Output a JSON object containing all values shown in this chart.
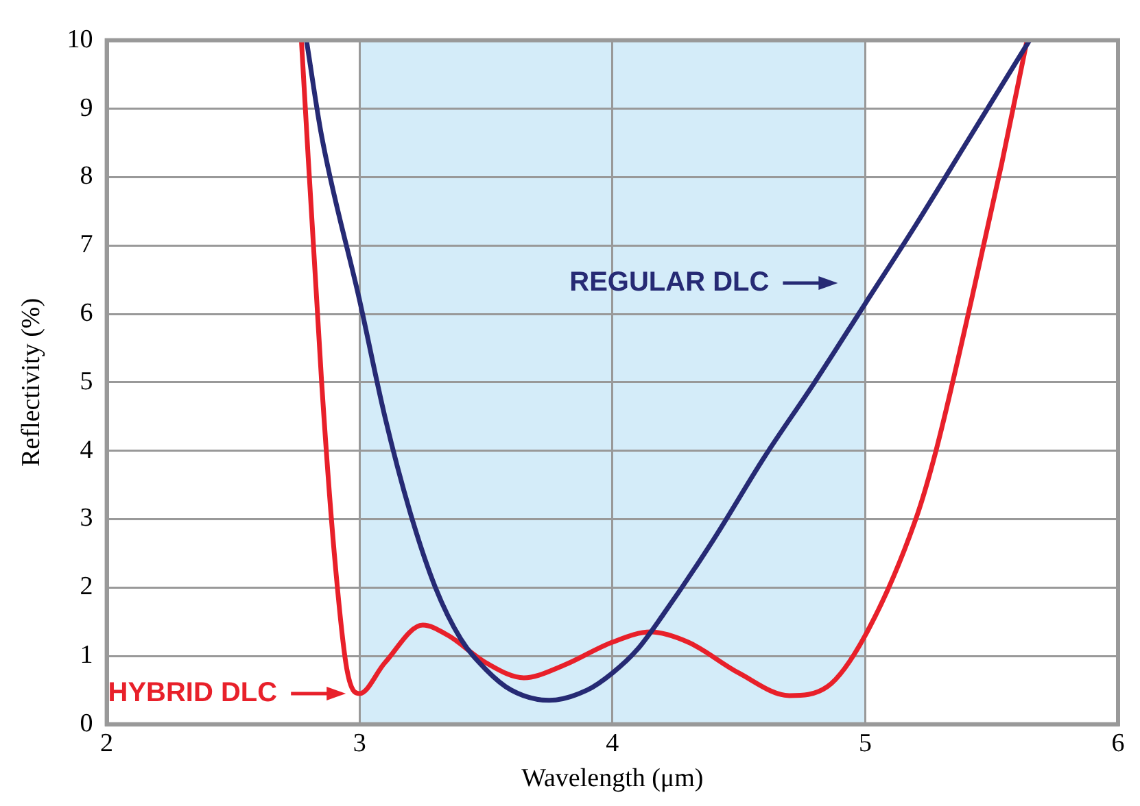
{
  "chart_data": {
    "type": "line",
    "xlabel": "Wavelength (μm)",
    "ylabel": "Reflectivity (%)",
    "xlim": [
      2,
      6
    ],
    "xticks": [
      2,
      3,
      4,
      5,
      6
    ],
    "ylim": [
      0,
      10
    ],
    "yticks": [
      0,
      1,
      2,
      3,
      4,
      5,
      6,
      7,
      8,
      9,
      10
    ],
    "grid": true,
    "legend": "bottom left",
    "marker": "none",
    "line_style": "solid",
    "bands": [
      {
        "axis": "x",
        "from": 3,
        "to": 5,
        "color": "#d4ecf9"
      }
    ],
    "series": [
      {
        "name": "REGULAR DLC",
        "color": "#262a74",
        "x": [
          2.79,
          2.85,
          3.0,
          3.1,
          3.2,
          3.3,
          3.4,
          3.5,
          3.6,
          3.75,
          3.9,
          4.0,
          4.1,
          4.2,
          4.4,
          4.6,
          4.8,
          5.0,
          5.2,
          5.4,
          5.55,
          5.65
        ],
        "values": [
          10,
          8.6,
          6.2,
          4.5,
          3.1,
          2.0,
          1.25,
          0.8,
          0.5,
          0.35,
          0.5,
          0.75,
          1.1,
          1.6,
          2.7,
          3.9,
          5.0,
          6.15,
          7.3,
          8.5,
          9.4,
          10
        ]
      },
      {
        "name": "HYBRID DLC",
        "color": "#e8202a",
        "x": [
          2.77,
          2.85,
          2.9,
          2.95,
          3.0,
          3.1,
          3.25,
          3.35,
          3.5,
          3.65,
          3.8,
          4.0,
          4.15,
          4.3,
          4.5,
          4.7,
          4.85,
          5.0,
          5.2,
          5.28,
          5.42,
          5.54,
          5.64
        ],
        "values": [
          10,
          5,
          2.5,
          0.8,
          0.45,
          0.9,
          1.45,
          1.3,
          0.9,
          0.68,
          0.85,
          1.2,
          1.35,
          1.2,
          0.75,
          0.42,
          0.55,
          1.3,
          3.0,
          4.0,
          6.2,
          8.2,
          10
        ]
      }
    ]
  }
}
